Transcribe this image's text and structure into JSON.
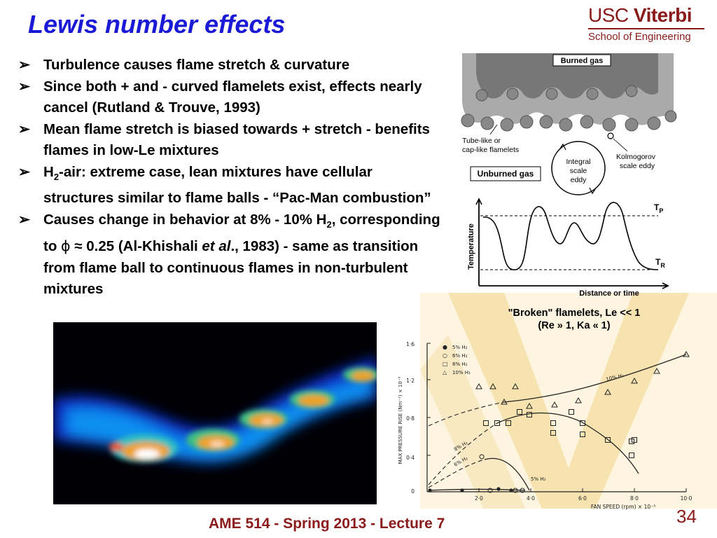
{
  "slide": {
    "title": "Lewis number effects",
    "logo": {
      "line1_a": "USC ",
      "line1_b": "Viterbi",
      "line2": "School of Engineering"
    },
    "footer": "AME 514 - Spring 2013 - Lecture 7",
    "page_number": "34"
  },
  "bullets": {
    "marker": "➢",
    "b1": "Turbulence causes flame stretch & curvature",
    "b2": "Since both + and - curved flamelets exist, effects nearly cancel (Rutland & Trouve, 1993)",
    "b3": "Mean flame stretch is biased towards + stretch - benefits flames in low-Le mixtures",
    "b4_a": "H",
    "b4_sub": "2",
    "b4_b": "-air:  extreme case, lean mixtures have cellular structures similar to flame balls - “Pac-Man combustion”",
    "b5_a": "Causes change in behavior at 8% - 10% H",
    "b5_sub": "2",
    "b5_b": ", corresponding to ",
    "b5_phi": "ϕ",
    "b5_c": " ≈ 0.25 (Al-Khishali ",
    "b5_etal": "et al",
    "b5_d": "., 1983) - same as transition from flame ball to continuous flames in non-turbulent mixtures"
  },
  "diagram": {
    "burned_gas": "Burned gas",
    "tube_like_1": "Tube-like or",
    "tube_like_2": "cap-like flamelets",
    "kolmogorov_1": "Kolmogorov",
    "kolmogorov_2": "scale eddy",
    "integral_1": "Integral",
    "integral_2": "scale",
    "integral_3": "eddy",
    "unburned_gas": "Unburned gas",
    "y_axis_label": "Temperature",
    "x_axis_label": "Distance or time",
    "tp_main": "T",
    "tp_sub": "P",
    "tr_main": "T",
    "tr_sub": "R"
  },
  "broken_caption": {
    "line1": "\"Broken\" flamelets, Le  << 1",
    "line2": "(Re » 1, Ka « 1)"
  },
  "graph": {
    "y_axis_label": "MAX PRESSURE RISE (Nm⁻²) × 10⁻⁵",
    "x_axis_label": "FAN SPEED (rpm) × 10⁻³",
    "y_ticks": [
      "0",
      "0·4",
      "0·8",
      "1·2",
      "1·6"
    ],
    "x_ticks": [
      "2·0",
      "4·0",
      "6·0",
      "8·0",
      "10·0"
    ],
    "legend": [
      {
        "symbol": "●",
        "label": "5% H₂"
      },
      {
        "symbol": "○",
        "label": "6% H₂"
      },
      {
        "symbol": "□",
        "label": "8% H₂"
      },
      {
        "symbol": "△",
        "label": "10% H₂"
      }
    ],
    "curve_labels": {
      "c10": "10% H₂",
      "c8": "8% H₂",
      "c6": "6% H₂",
      "c5": "5% H₂"
    },
    "colors": {
      "ink": "#222222",
      "watermark": "#f6e3b0"
    }
  }
}
